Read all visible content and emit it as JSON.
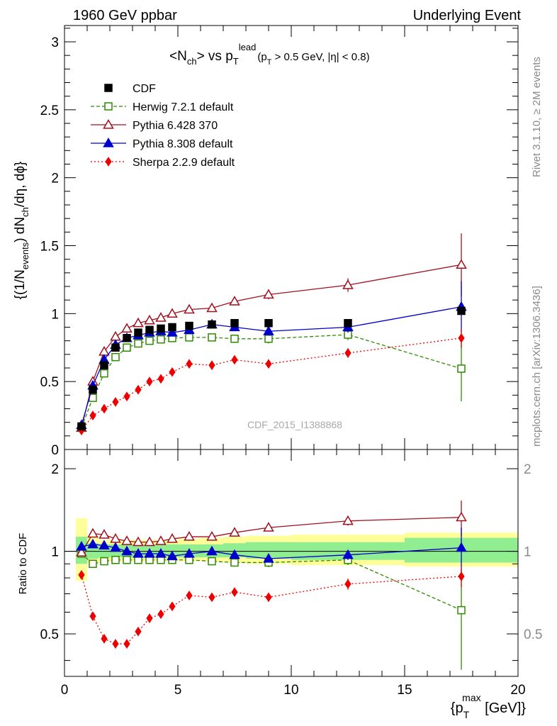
{
  "header": {
    "left": "1960 GeV ppbar",
    "right": "Underlying Event"
  },
  "side_text": {
    "rivet": "Rivet 3.1.10, ≥ 2M events",
    "mcplots": "mcplots.cern.ch [arXiv:1306.3436]"
  },
  "chart_data": [
    {
      "type": "line",
      "panel": "main",
      "title_parts": {
        "pre": "<N",
        "ch_sub": "ch",
        "mid": "> vs p",
        "T_sub": "T",
        "lead_sup": "lead",
        "cut": "(p",
        "cut_T_sub": "T",
        "cut_rest": " > 0.5 GeV, |η| < 0.8)"
      },
      "ylabel": "{(1/N_events) dN_ch/dη, dϕ}",
      "ylabel_parts": {
        "a": "{(1/N",
        "b": "events",
        "c": ") dN",
        "d": "ch",
        "e": "/dη, dϕ}"
      },
      "watermark": "CDF_2015_I1388868",
      "xlim": [
        0,
        20
      ],
      "ylim": [
        0,
        3.12
      ],
      "yticks": [
        "0",
        "0.5",
        "1",
        "1.5",
        "2",
        "2.5",
        "3"
      ],
      "ytick_values": [
        0,
        0.5,
        1,
        1.5,
        2,
        2.5,
        3
      ],
      "legend_position": "top-left",
      "series": [
        {
          "name": "CDF",
          "color": "#000000",
          "marker": "filled-square",
          "line": "none",
          "x": [
            0.75,
            1.25,
            1.75,
            2.25,
            2.75,
            3.25,
            3.75,
            4.25,
            4.75,
            5.5,
            6.5,
            7.5,
            9.0,
            12.5,
            17.5
          ],
          "y": [
            0.17,
            0.44,
            0.62,
            0.75,
            0.82,
            0.86,
            0.88,
            0.89,
            0.9,
            0.91,
            0.92,
            0.93,
            0.93,
            0.93,
            1.02
          ],
          "err": [
            0.01,
            0.01,
            0.01,
            0.01,
            0.01,
            0.01,
            0.01,
            0.01,
            0.01,
            0.01,
            0.01,
            0.01,
            0.01,
            0.01,
            0.02
          ]
        },
        {
          "name": "Herwig 7.2.1 default",
          "color": "#2e8b00",
          "marker": "open-square",
          "line": "dashed",
          "x": [
            0.75,
            1.25,
            1.75,
            2.25,
            2.75,
            3.25,
            3.75,
            4.25,
            4.75,
            5.5,
            6.5,
            7.5,
            9.0,
            12.5,
            17.5
          ],
          "y": [
            0.16,
            0.38,
            0.56,
            0.68,
            0.75,
            0.78,
            0.8,
            0.81,
            0.82,
            0.825,
            0.825,
            0.815,
            0.815,
            0.845,
            0.595
          ],
          "err": [
            0.005,
            0.01,
            0.01,
            0.01,
            0.01,
            0.01,
            0.01,
            0.01,
            0.01,
            0.015,
            0.02,
            0.03,
            0.035,
            0.04,
            0.24
          ]
        },
        {
          "name": "Pythia 6.428 370",
          "color": "#a0101e",
          "marker": "open-triangle",
          "line": "solid",
          "x": [
            0.75,
            1.25,
            1.75,
            2.25,
            2.75,
            3.25,
            3.75,
            4.25,
            4.75,
            5.5,
            6.5,
            7.5,
            9.0,
            12.5,
            17.5
          ],
          "y": [
            0.16,
            0.5,
            0.72,
            0.83,
            0.89,
            0.93,
            0.95,
            0.97,
            1.0,
            1.03,
            1.04,
            1.09,
            1.14,
            1.21,
            1.36
          ],
          "err": [
            0.005,
            0.01,
            0.01,
            0.01,
            0.01,
            0.01,
            0.01,
            0.01,
            0.015,
            0.015,
            0.02,
            0.03,
            0.035,
            0.05,
            0.23
          ]
        },
        {
          "name": "Pythia 8.308 default",
          "color": "#0000cc",
          "marker": "filled-triangle",
          "line": "solid",
          "x": [
            0.75,
            1.25,
            1.75,
            2.25,
            2.75,
            3.25,
            3.75,
            4.25,
            4.75,
            5.5,
            6.5,
            7.5,
            9.0,
            12.5,
            17.5
          ],
          "y": [
            0.18,
            0.47,
            0.66,
            0.77,
            0.82,
            0.84,
            0.86,
            0.87,
            0.86,
            0.88,
            0.92,
            0.9,
            0.87,
            0.9,
            1.05
          ],
          "err": [
            0.005,
            0.01,
            0.01,
            0.01,
            0.01,
            0.01,
            0.01,
            0.01,
            0.01,
            0.015,
            0.02,
            0.025,
            0.03,
            0.04,
            0.19
          ]
        },
        {
          "name": "Sherpa 2.2.9 default",
          "color": "#ee0000",
          "marker": "filled-diamond",
          "line": "dotted",
          "x": [
            0.75,
            1.25,
            1.75,
            2.25,
            2.75,
            3.25,
            3.75,
            4.25,
            4.75,
            5.5,
            6.5,
            7.5,
            9.0,
            12.5,
            17.5
          ],
          "y": [
            0.14,
            0.25,
            0.3,
            0.35,
            0.39,
            0.44,
            0.5,
            0.52,
            0.57,
            0.63,
            0.62,
            0.66,
            0.63,
            0.71,
            0.82
          ],
          "err": [
            0.005,
            0.01,
            0.01,
            0.01,
            0.01,
            0.01,
            0.01,
            0.01,
            0.015,
            0.02,
            0.02,
            0.025,
            0.025,
            0.035,
            0.07
          ]
        }
      ]
    },
    {
      "type": "line",
      "panel": "ratio",
      "ylabel": "Ratio to CDF",
      "xlabel": "{p_T^max [GeV]}",
      "xlabel_parts": {
        "a": "{p",
        "sub": "T",
        "sup": "max",
        "b": " [GeV]}"
      },
      "xlim": [
        0,
        20
      ],
      "ylim": [
        0.35,
        2.35
      ],
      "yscale": "log",
      "xticks": [
        "0",
        "5",
        "10",
        "15",
        "20"
      ],
      "xtick_values": [
        0,
        5,
        10,
        15,
        20
      ],
      "yticks": [
        "0.5",
        "1",
        "2"
      ],
      "ytick_values": [
        0.5,
        1,
        2
      ],
      "uncertainty_bands": {
        "bins": [
          [
            0.5,
            1.0
          ],
          [
            1.0,
            1.5
          ],
          [
            1.5,
            2.0
          ],
          [
            2.0,
            2.5
          ],
          [
            2.5,
            3.0
          ],
          [
            3.0,
            3.5
          ],
          [
            3.5,
            4.0
          ],
          [
            4.0,
            4.5
          ],
          [
            4.5,
            5.0
          ],
          [
            5.0,
            6.0
          ],
          [
            6.0,
            7.0
          ],
          [
            7.0,
            8.0
          ],
          [
            8.0,
            10.0
          ],
          [
            10.0,
            15.0
          ],
          [
            15.0,
            20.0
          ]
        ],
        "stat_color": "#90ee90",
        "syst_color": "#ffff99",
        "inner": [
          [
            0.9,
            1.13
          ],
          [
            0.94,
            1.07
          ],
          [
            0.95,
            1.06
          ],
          [
            0.95,
            1.06
          ],
          [
            0.95,
            1.06
          ],
          [
            0.95,
            1.06
          ],
          [
            0.95,
            1.06
          ],
          [
            0.95,
            1.06
          ],
          [
            0.95,
            1.06
          ],
          [
            0.95,
            1.06
          ],
          [
            0.95,
            1.06
          ],
          [
            0.95,
            1.07
          ],
          [
            0.94,
            1.08
          ],
          [
            0.93,
            1.08
          ],
          [
            0.91,
            1.12
          ]
        ],
        "outer": [
          [
            0.78,
            1.32
          ],
          [
            0.9,
            1.13
          ],
          [
            0.92,
            1.1
          ],
          [
            0.92,
            1.1
          ],
          [
            0.92,
            1.1
          ],
          [
            0.92,
            1.1
          ],
          [
            0.92,
            1.1
          ],
          [
            0.92,
            1.1
          ],
          [
            0.92,
            1.1
          ],
          [
            0.92,
            1.11
          ],
          [
            0.92,
            1.12
          ],
          [
            0.91,
            1.13
          ],
          [
            0.9,
            1.14
          ],
          [
            0.89,
            1.15
          ],
          [
            0.88,
            1.17
          ]
        ]
      },
      "series": [
        {
          "name": "Herwig 7.2.1 default",
          "color": "#2e8b00",
          "marker": "open-square",
          "line": "dashed",
          "x": [
            0.75,
            1.25,
            1.75,
            2.25,
            2.75,
            3.25,
            3.75,
            4.25,
            4.75,
            5.5,
            6.5,
            7.5,
            9.0,
            12.5,
            17.5
          ],
          "y": [
            0.98,
            0.9,
            0.92,
            0.93,
            0.93,
            0.93,
            0.93,
            0.93,
            0.93,
            0.93,
            0.92,
            0.91,
            0.91,
            0.93,
            0.61
          ],
          "err": [
            0.03,
            0.01,
            0.01,
            0.01,
            0.01,
            0.01,
            0.01,
            0.01,
            0.01,
            0.015,
            0.02,
            0.03,
            0.035,
            0.04,
            0.24
          ]
        },
        {
          "name": "Pythia 6.428 370",
          "color": "#a0101e",
          "marker": "open-triangle",
          "line": "solid",
          "x": [
            0.75,
            1.25,
            1.75,
            2.25,
            2.75,
            3.25,
            3.75,
            4.25,
            4.75,
            5.5,
            6.5,
            7.5,
            9.0,
            12.5,
            17.5
          ],
          "y": [
            0.99,
            1.16,
            1.15,
            1.11,
            1.09,
            1.08,
            1.08,
            1.09,
            1.11,
            1.13,
            1.13,
            1.17,
            1.22,
            1.29,
            1.33
          ],
          "err": [
            0.03,
            0.01,
            0.01,
            0.01,
            0.01,
            0.01,
            0.01,
            0.01,
            0.015,
            0.015,
            0.02,
            0.03,
            0.035,
            0.05,
            0.2
          ]
        },
        {
          "name": "Pythia 8.308 default",
          "color": "#0000cc",
          "marker": "filled-triangle",
          "line": "solid",
          "x": [
            0.75,
            1.25,
            1.75,
            2.25,
            2.75,
            3.25,
            3.75,
            4.25,
            4.75,
            5.5,
            6.5,
            7.5,
            9.0,
            12.5,
            17.5
          ],
          "y": [
            1.04,
            1.06,
            1.05,
            1.03,
            1.0,
            0.98,
            0.98,
            0.98,
            0.96,
            0.98,
            1.0,
            0.97,
            0.94,
            0.97,
            1.03
          ],
          "err": [
            0.03,
            0.01,
            0.01,
            0.01,
            0.01,
            0.01,
            0.01,
            0.01,
            0.01,
            0.015,
            0.02,
            0.025,
            0.03,
            0.04,
            0.19
          ]
        },
        {
          "name": "Sherpa 2.2.9 default",
          "color": "#ee0000",
          "marker": "filled-diamond",
          "line": "dotted",
          "x": [
            0.75,
            1.25,
            1.75,
            2.25,
            2.75,
            3.25,
            3.75,
            4.25,
            4.75,
            5.5,
            6.5,
            7.5,
            9.0,
            12.5,
            17.5
          ],
          "y": [
            0.82,
            0.58,
            0.48,
            0.46,
            0.46,
            0.51,
            0.57,
            0.59,
            0.63,
            0.69,
            0.68,
            0.71,
            0.68,
            0.76,
            0.81
          ],
          "err": [
            0.02,
            0.01,
            0.01,
            0.01,
            0.01,
            0.01,
            0.01,
            0.01,
            0.015,
            0.02,
            0.02,
            0.025,
            0.025,
            0.035,
            0.07
          ]
        }
      ]
    }
  ]
}
